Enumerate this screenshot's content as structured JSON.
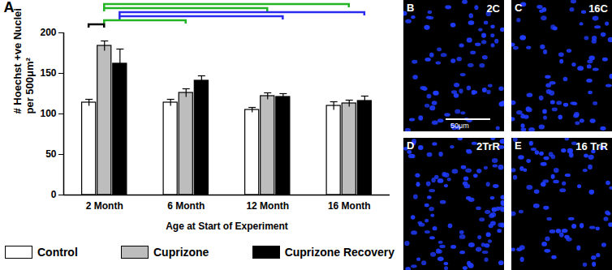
{
  "chart_data": {
    "type": "bar",
    "title": "A",
    "categories": [
      "2 Month",
      "6 Month",
      "12 Month",
      "16 Month"
    ],
    "x_label": "Age at Start of Experiment",
    "y_label": "# Hoechst +ve Nuclei\nper 500μm²",
    "series": [
      {
        "name": "Control",
        "color": "#ffffff",
        "values": [
          114,
          114,
          105,
          110
        ],
        "errors": [
          4,
          4,
          3,
          5
        ]
      },
      {
        "name": "Cuprizone",
        "color": "#bdbdbd",
        "values": [
          184,
          126,
          122,
          113
        ],
        "errors": [
          6,
          5,
          4,
          4
        ]
      },
      {
        "name": "Cuprizone Recovery",
        "color": "#000000",
        "values": [
          162,
          141,
          121,
          116
        ],
        "errors": [
          18,
          6,
          4,
          6
        ]
      }
    ],
    "ylim": [
      0,
      200
    ],
    "yticks": [
      0,
      50,
      100,
      150,
      200
    ],
    "legend": "bottom",
    "significance": [
      {
        "from": [
          "2 Month",
          "Cuprizone"
        ],
        "to": [
          "16 Month",
          "Cuprizone"
        ],
        "color": "#22b422"
      },
      {
        "from": [
          "2 Month",
          "Cuprizone"
        ],
        "to": [
          "12 Month",
          "Cuprizone"
        ],
        "color": "#22b422"
      },
      {
        "from": [
          "2 Month",
          "Cuprizone Recovery"
        ],
        "to": [
          "16 Month",
          "Cuprizone Recovery"
        ],
        "color": "#2a2aee"
      },
      {
        "from": [
          "2 Month",
          "Cuprizone Recovery"
        ],
        "to": [
          "12 Month",
          "Cuprizone Recovery"
        ],
        "color": "#2a2aee"
      },
      {
        "from": [
          "2 Month",
          "Cuprizone"
        ],
        "to": [
          "6 Month",
          "Cuprizone"
        ],
        "color": "#22b422"
      },
      {
        "from": [
          "2 Month",
          "Control"
        ],
        "to": [
          "2 Month",
          "Cuprizone"
        ],
        "color": "#000000"
      }
    ]
  },
  "images": [
    {
      "panel": "B",
      "label": "2C",
      "scale_bar": "50μm"
    },
    {
      "panel": "C",
      "label": "16C"
    },
    {
      "panel": "D",
      "label": "2TrR"
    },
    {
      "panel": "E",
      "label": "16 TrR"
    }
  ]
}
